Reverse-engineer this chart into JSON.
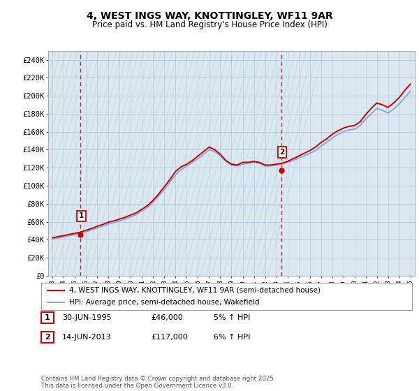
{
  "title": "4, WEST INGS WAY, KNOTTINGLEY, WF11 9AR",
  "subtitle": "Price paid vs. HM Land Registry's House Price Index (HPI)",
  "legend_line1": "4, WEST INGS WAY, KNOTTINGLEY, WF11 9AR (semi-detached house)",
  "legend_line2": "HPI: Average price, semi-detached house, Wakefield",
  "footnote": "Contains HM Land Registry data © Crown copyright and database right 2025.\nThis data is licensed under the Open Government Licence v3.0.",
  "sale1_label": "1",
  "sale1_date": "30-JUN-1995",
  "sale1_price": "£46,000",
  "sale1_hpi": "5% ↑ HPI",
  "sale2_label": "2",
  "sale2_date": "14-JUN-2013",
  "sale2_price": "£117,000",
  "sale2_hpi": "6% ↑ HPI",
  "price_line_color": "#cc0000",
  "hpi_line_color": "#88aadd",
  "sale_marker_color": "#cc0000",
  "vline_color": "#cc0000",
  "grid_color": "#bbccdd",
  "bg_color": "#ffffff",
  "plot_bg_color": "#dce8f0",
  "hatch_color": "#c8d8e8",
  "ylim_min": 0,
  "ylim_max": 250000,
  "ytick_step": 20000,
  "title_fontsize": 10,
  "subtitle_fontsize": 8.5,
  "axis_fontsize": 7.5,
  "legend_fontsize": 7.5,
  "sale1_x_year": 1995.5,
  "sale2_x_year": 2013.45,
  "sale1_price_val": 46000,
  "sale2_price_val": 117000,
  "hpi_years": [
    1993,
    1993.5,
    1994,
    1994.5,
    1995,
    1995.5,
    1996,
    1996.5,
    1997,
    1997.5,
    1998,
    1998.5,
    1999,
    1999.5,
    2000,
    2000.5,
    2001,
    2001.5,
    2002,
    2002.5,
    2003,
    2003.5,
    2004,
    2004.5,
    2005,
    2005.5,
    2006,
    2006.5,
    2007,
    2007.5,
    2008,
    2008.5,
    2009,
    2009.5,
    2010,
    2010.5,
    2011,
    2011.5,
    2012,
    2012.5,
    2013,
    2013.5,
    2014,
    2014.5,
    2015,
    2015.5,
    2016,
    2016.5,
    2017,
    2017.5,
    2018,
    2018.5,
    2019,
    2019.5,
    2020,
    2020.5,
    2021,
    2021.5,
    2022,
    2022.5,
    2023,
    2023.5,
    2024,
    2024.5,
    2025
  ],
  "hpi_values": [
    41000,
    42000,
    43000,
    44500,
    45500,
    47000,
    49000,
    51000,
    53000,
    55000,
    57500,
    59000,
    61000,
    63000,
    65500,
    68000,
    72000,
    76000,
    82000,
    89000,
    96000,
    104000,
    112000,
    118000,
    122000,
    126000,
    130000,
    135000,
    140000,
    138000,
    133000,
    127000,
    123000,
    122000,
    124000,
    125000,
    126000,
    125000,
    122000,
    122000,
    123000,
    124000,
    126000,
    128000,
    131000,
    133000,
    136000,
    139000,
    144000,
    148000,
    153000,
    157000,
    160000,
    162000,
    163000,
    167000,
    174000,
    180000,
    186000,
    184000,
    181000,
    185000,
    191000,
    198000,
    205000
  ],
  "price_years": [
    1993,
    1993.5,
    1994,
    1994.5,
    1995,
    1995.5,
    1996,
    1996.5,
    1997,
    1997.5,
    1998,
    1998.5,
    1999,
    1999.5,
    2000,
    2000.5,
    2001,
    2001.5,
    2002,
    2002.5,
    2003,
    2003.5,
    2004,
    2004.5,
    2005,
    2005.5,
    2006,
    2006.5,
    2007,
    2007.5,
    2008,
    2008.5,
    2009,
    2009.5,
    2010,
    2010.5,
    2011,
    2011.5,
    2012,
    2012.5,
    2013,
    2013.5,
    2014,
    2014.5,
    2015,
    2015.5,
    2016,
    2016.5,
    2017,
    2017.5,
    2018,
    2018.5,
    2019,
    2019.5,
    2020,
    2020.5,
    2021,
    2021.5,
    2022,
    2022.5,
    2023,
    2023.5,
    2024,
    2024.5,
    2025
  ],
  "price_values": [
    42000,
    43500,
    44500,
    46000,
    47000,
    48500,
    50500,
    52500,
    55000,
    57000,
    59500,
    61000,
    63000,
    65000,
    67500,
    70000,
    74000,
    78000,
    84000,
    91000,
    99000,
    107000,
    116000,
    121000,
    124000,
    128000,
    133000,
    138000,
    143000,
    140000,
    135000,
    128000,
    124000,
    123000,
    126000,
    126000,
    127000,
    126000,
    123000,
    123000,
    124000,
    125000,
    127000,
    130000,
    133000,
    136000,
    139000,
    143000,
    148000,
    152000,
    157000,
    161000,
    164000,
    166000,
    167000,
    171000,
    179000,
    186000,
    192000,
    190000,
    187000,
    192000,
    198000,
    206000,
    213000
  ],
  "x_tick_years": [
    1993,
    1994,
    1995,
    1996,
    1997,
    1998,
    1999,
    2000,
    2001,
    2002,
    2003,
    2004,
    2005,
    2006,
    2007,
    2008,
    2009,
    2010,
    2011,
    2012,
    2013,
    2014,
    2015,
    2016,
    2017,
    2018,
    2019,
    2020,
    2021,
    2022,
    2023,
    2024,
    2025
  ]
}
